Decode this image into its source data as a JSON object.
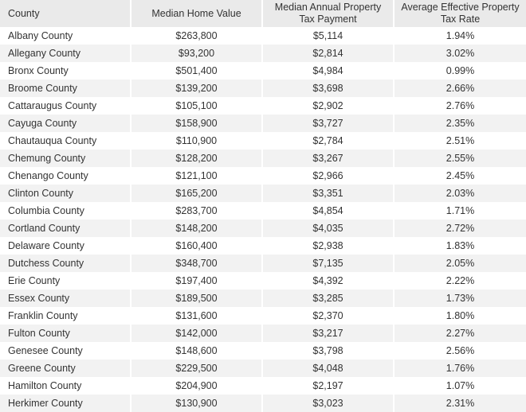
{
  "table": {
    "headers": {
      "county": "County",
      "median_home_value": "Median Home Value",
      "median_tax_payment": "Median Annual Property Tax Payment",
      "effective_rate": "Average Effective Property Tax Rate"
    },
    "rows": [
      {
        "county": "Albany County",
        "home_value": "$263,800",
        "tax_payment": "$5,114",
        "rate": "1.94%"
      },
      {
        "county": "Allegany County",
        "home_value": "$93,200",
        "tax_payment": "$2,814",
        "rate": "3.02%"
      },
      {
        "county": "Bronx County",
        "home_value": "$501,400",
        "tax_payment": "$4,984",
        "rate": "0.99%"
      },
      {
        "county": "Broome County",
        "home_value": "$139,200",
        "tax_payment": "$3,698",
        "rate": "2.66%"
      },
      {
        "county": "Cattaraugus County",
        "home_value": "$105,100",
        "tax_payment": "$2,902",
        "rate": "2.76%"
      },
      {
        "county": "Cayuga County",
        "home_value": "$158,900",
        "tax_payment": "$3,727",
        "rate": "2.35%"
      },
      {
        "county": "Chautauqua County",
        "home_value": "$110,900",
        "tax_payment": "$2,784",
        "rate": "2.51%"
      },
      {
        "county": "Chemung County",
        "home_value": "$128,200",
        "tax_payment": "$3,267",
        "rate": "2.55%"
      },
      {
        "county": "Chenango County",
        "home_value": "$121,100",
        "tax_payment": "$2,966",
        "rate": "2.45%"
      },
      {
        "county": "Clinton County",
        "home_value": "$165,200",
        "tax_payment": "$3,351",
        "rate": "2.03%"
      },
      {
        "county": "Columbia County",
        "home_value": "$283,700",
        "tax_payment": "$4,854",
        "rate": "1.71%"
      },
      {
        "county": "Cortland County",
        "home_value": "$148,200",
        "tax_payment": "$4,035",
        "rate": "2.72%"
      },
      {
        "county": "Delaware County",
        "home_value": "$160,400",
        "tax_payment": "$2,938",
        "rate": "1.83%"
      },
      {
        "county": "Dutchess County",
        "home_value": "$348,700",
        "tax_payment": "$7,135",
        "rate": "2.05%"
      },
      {
        "county": "Erie County",
        "home_value": "$197,400",
        "tax_payment": "$4,392",
        "rate": "2.22%"
      },
      {
        "county": "Essex County",
        "home_value": "$189,500",
        "tax_payment": "$3,285",
        "rate": "1.73%"
      },
      {
        "county": "Franklin County",
        "home_value": "$131,600",
        "tax_payment": "$2,370",
        "rate": "1.80%"
      },
      {
        "county": "Fulton County",
        "home_value": "$142,000",
        "tax_payment": "$3,217",
        "rate": "2.27%"
      },
      {
        "county": "Genesee County",
        "home_value": "$148,600",
        "tax_payment": "$3,798",
        "rate": "2.56%"
      },
      {
        "county": "Greene County",
        "home_value": "$229,500",
        "tax_payment": "$4,048",
        "rate": "1.76%"
      },
      {
        "county": "Hamilton County",
        "home_value": "$204,900",
        "tax_payment": "$2,197",
        "rate": "1.07%"
      },
      {
        "county": "Herkimer County",
        "home_value": "$130,900",
        "tax_payment": "$3,023",
        "rate": "2.31%"
      }
    ]
  }
}
